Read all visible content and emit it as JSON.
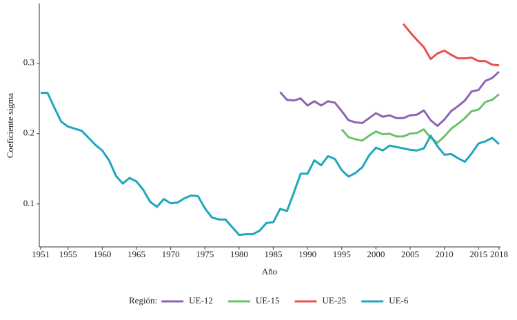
{
  "chart_data": {
    "type": "line",
    "x_label": "Año",
    "y_label": "Coeficiente sigma",
    "legend_title": "Región:",
    "x": [
      1951,
      1952,
      1953,
      1954,
      1955,
      1956,
      1957,
      1958,
      1959,
      1960,
      1961,
      1962,
      1963,
      1964,
      1965,
      1966,
      1967,
      1968,
      1969,
      1970,
      1971,
      1972,
      1973,
      1974,
      1975,
      1976,
      1977,
      1978,
      1979,
      1980,
      1981,
      1982,
      1983,
      1984,
      1985,
      1986,
      1987,
      1988,
      1989,
      1990,
      1991,
      1992,
      1993,
      1994,
      1995,
      1996,
      1997,
      1998,
      1999,
      2000,
      2001,
      2002,
      2003,
      2004,
      2005,
      2006,
      2007,
      2008,
      2009,
      2010,
      2011,
      2012,
      2013,
      2014,
      2015,
      2016,
      2017,
      2018
    ],
    "xlim": [
      1951,
      2018
    ],
    "xticks": [
      1951,
      1955,
      1960,
      1965,
      1970,
      1975,
      1980,
      1985,
      1990,
      1995,
      2000,
      2005,
      2010,
      2015,
      2018
    ],
    "ylim": [
      0.039,
      0.385
    ],
    "yticks": [
      0.1,
      0.2,
      0.3
    ],
    "grid": false,
    "legend": "bottom",
    "series": [
      {
        "name": "UE-12",
        "color": "#8e63b5",
        "values": [
          null,
          null,
          null,
          null,
          null,
          null,
          null,
          null,
          null,
          null,
          null,
          null,
          null,
          null,
          null,
          null,
          null,
          null,
          null,
          null,
          null,
          null,
          null,
          null,
          null,
          null,
          null,
          null,
          null,
          null,
          null,
          null,
          null,
          null,
          null,
          0.259,
          0.248,
          0.247,
          0.25,
          0.24,
          0.246,
          0.24,
          0.246,
          0.244,
          0.232,
          0.219,
          0.216,
          0.215,
          0.222,
          0.229,
          0.224,
          0.226,
          0.222,
          0.222,
          0.226,
          0.227,
          0.233,
          0.219,
          0.211,
          0.22,
          0.232,
          0.239,
          0.247,
          0.26,
          0.262,
          0.275,
          0.279,
          0.288
        ]
      },
      {
        "name": "UE-15",
        "color": "#6cc26b",
        "values": [
          null,
          null,
          null,
          null,
          null,
          null,
          null,
          null,
          null,
          null,
          null,
          null,
          null,
          null,
          null,
          null,
          null,
          null,
          null,
          null,
          null,
          null,
          null,
          null,
          null,
          null,
          null,
          null,
          null,
          null,
          null,
          null,
          null,
          null,
          null,
          null,
          null,
          null,
          null,
          null,
          null,
          null,
          null,
          null,
          0.206,
          0.195,
          0.192,
          0.19,
          0.197,
          0.203,
          0.199,
          0.2,
          0.196,
          0.196,
          0.2,
          0.201,
          0.206,
          0.194,
          0.187,
          0.196,
          0.207,
          0.214,
          0.222,
          0.232,
          0.234,
          0.245,
          0.248,
          0.256
        ]
      },
      {
        "name": "UE-25",
        "color": "#e8504f",
        "values": [
          null,
          null,
          null,
          null,
          null,
          null,
          null,
          null,
          null,
          null,
          null,
          null,
          null,
          null,
          null,
          null,
          null,
          null,
          null,
          null,
          null,
          null,
          null,
          null,
          null,
          null,
          null,
          null,
          null,
          null,
          null,
          null,
          null,
          null,
          null,
          null,
          null,
          null,
          null,
          null,
          null,
          null,
          null,
          null,
          null,
          null,
          null,
          null,
          null,
          null,
          null,
          null,
          null,
          0.356,
          0.344,
          0.333,
          0.323,
          0.306,
          0.314,
          0.318,
          0.312,
          0.307,
          0.307,
          0.308,
          0.303,
          0.303,
          0.298,
          0.297
        ]
      },
      {
        "name": "UE-6",
        "color": "#1fa6be",
        "values": [
          0.258,
          0.258,
          0.237,
          0.217,
          0.21,
          0.207,
          0.204,
          0.194,
          0.184,
          0.176,
          0.162,
          0.14,
          0.129,
          0.137,
          0.132,
          0.12,
          0.103,
          0.096,
          0.107,
          0.101,
          0.102,
          0.108,
          0.112,
          0.111,
          0.094,
          0.081,
          0.078,
          0.078,
          0.067,
          0.056,
          0.057,
          0.057,
          0.062,
          0.073,
          0.074,
          0.093,
          0.09,
          0.116,
          0.143,
          0.143,
          0.162,
          0.155,
          0.168,
          0.164,
          0.148,
          0.139,
          0.144,
          0.152,
          0.169,
          0.18,
          0.176,
          0.183,
          0.181,
          0.179,
          0.177,
          0.176,
          0.179,
          0.197,
          0.182,
          0.17,
          0.171,
          0.165,
          0.16,
          0.172,
          0.186,
          0.189,
          0.194,
          0.185
        ]
      }
    ]
  }
}
